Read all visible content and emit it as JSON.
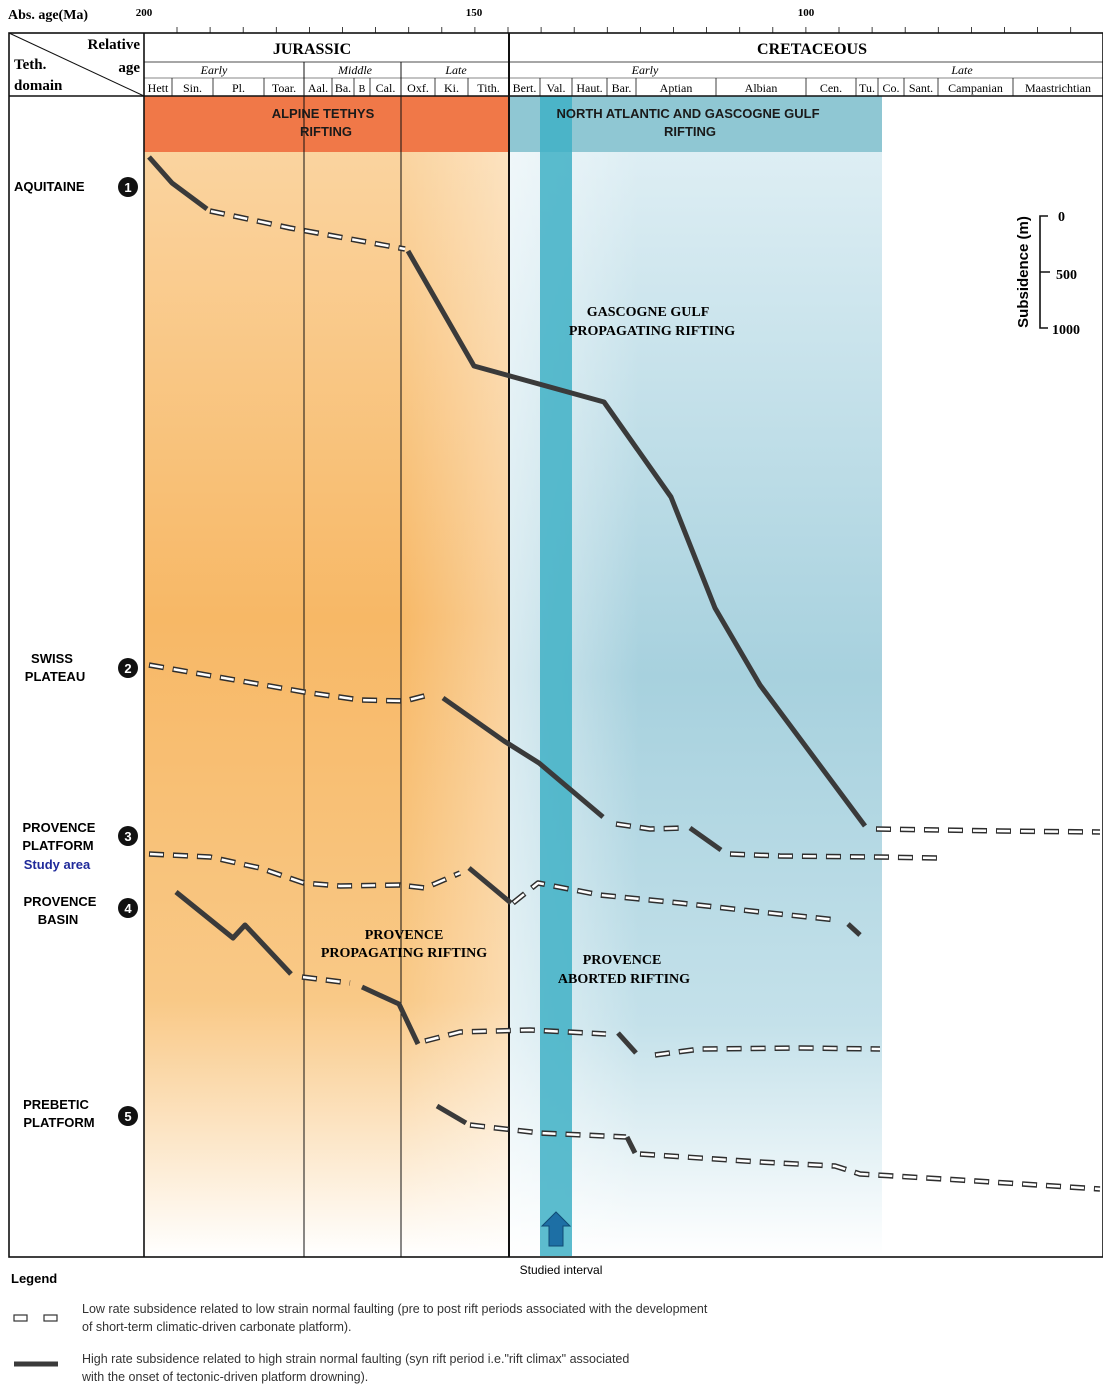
{
  "figure": {
    "abs_age_label": "Abs. age(Ma)",
    "age_ticks": [
      "200",
      "150",
      "100"
    ],
    "corner": {
      "relative": "Relative",
      "age": "age",
      "teth": "Teth.",
      "domain": "domain"
    },
    "periods": {
      "jurassic": "JURASSIC",
      "cretaceous": "CRETACEOUS"
    },
    "epochs": {
      "jur_early": "Early",
      "jur_middle": "Middle",
      "jur_late": "Late",
      "cre_early": "Early",
      "cre_late": "Late"
    },
    "stages": [
      "Hett",
      "Sin.",
      "Pl.",
      "Toar.",
      "Aal.",
      "Ba.",
      "B",
      "Cal.",
      "Oxf.",
      "Ki.",
      "Tith.",
      "Bert.",
      "Val.",
      "Haut.",
      "Bar.",
      "Aptian",
      "Albian",
      "Cen.",
      "Tu.",
      "Co.",
      "Sant.",
      "Campanian",
      "Maastrichtian"
    ],
    "bands": {
      "alpine_1": "ALPINE TETHYS",
      "alpine_2": "RIFTING",
      "atlantic_1": "NORTH ATLANTIC AND GASCOGNE GULF",
      "atlantic_2": "RIFTING"
    },
    "annotations": {
      "gascogne_1": "GASCOGNE GULF",
      "gascogne_2": "PROPAGATING RIFTING",
      "provence_prop_1": "PROVENCE",
      "provence_prop_2": "PROPAGATING  RIFTING",
      "provence_abort_1": "PROVENCE",
      "provence_abort_2": "ABORTED RIFTING",
      "studied_interval": "Studied interval"
    },
    "scale": {
      "title": "Subsidence (m)",
      "ticks": [
        "0",
        "500",
        "1000"
      ]
    },
    "domains": [
      {
        "number": "1",
        "line1": "AQUITAINE",
        "line2": "",
        "note": ""
      },
      {
        "number": "2",
        "line1": "SWISS",
        "line2": "PLATEAU",
        "note": ""
      },
      {
        "number": "3",
        "line1": "PROVENCE",
        "line2": "PLATFORM",
        "note": "Study area"
      },
      {
        "number": "4",
        "line1": "PROVENCE",
        "line2": "BASIN",
        "note": ""
      },
      {
        "number": "5",
        "line1": "PREBETIC",
        "line2": "PLATFORM",
        "note": ""
      }
    ],
    "legend": {
      "title": "Legend",
      "low_1": "Low rate subsidence related to low strain normal faulting  (pre to post rift periods associated with the development",
      "low_2": "of short-term climatic-driven carbonate platform).",
      "high_1": "High rate subsidence related to high strain normal faulting  (syn rift period i.e.\"rift climax\" associated",
      "high_2": " with the onset of tectonic-driven platform drowning)."
    },
    "colors": {
      "alpine_band": "#f07848",
      "atlantic_band": "#8fc7d3",
      "jurassic_fill": "#f6b45c",
      "cretaceous_fill": "#a9d2df",
      "studied_strip": "#3fb0c6",
      "high_rate_line": "#3a3a3a",
      "study_area_text": "#1f2a9a"
    }
  }
}
